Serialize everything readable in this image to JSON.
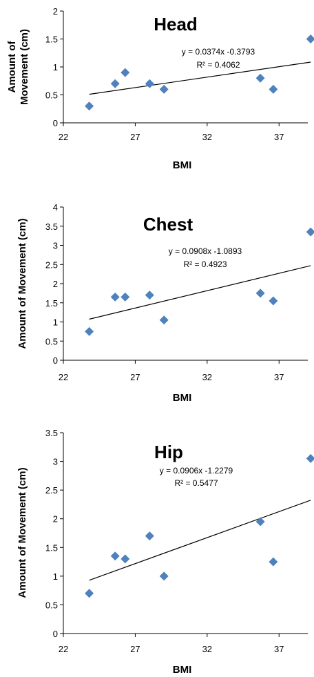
{
  "chart_data": [
    {
      "type": "scatter",
      "title": "Head",
      "xlabel": "BMI",
      "ylabel": "Amount of Movement (cm)",
      "ylabel_lines": [
        "Amount of",
        "Movement (cm)"
      ],
      "xlim": [
        22,
        39
      ],
      "ylim": [
        0,
        2
      ],
      "xticks": [
        "22",
        "27",
        "32",
        "37"
      ],
      "yticks": [
        "0",
        "0.5",
        "1",
        "1.5",
        "2"
      ],
      "points": [
        {
          "x": 23.8,
          "y": 0.3
        },
        {
          "x": 25.6,
          "y": 0.7
        },
        {
          "x": 26.3,
          "y": 0.9
        },
        {
          "x": 28.0,
          "y": 0.7
        },
        {
          "x": 29.0,
          "y": 0.6
        },
        {
          "x": 35.7,
          "y": 0.8
        },
        {
          "x": 36.6,
          "y": 0.6
        },
        {
          "x": 39.2,
          "y": 1.5
        }
      ],
      "trendline": {
        "slope": 0.0374,
        "intercept": -0.3793,
        "x_range": [
          23.8,
          39.2
        ]
      },
      "equation": "y = 0.0374x -0.3793",
      "r_squared": "R² = 0.4062",
      "marker_color": "#4f81bd",
      "grid": false,
      "legend": "none"
    },
    {
      "type": "scatter",
      "title": "Chest",
      "xlabel": "BMI",
      "ylabel": "Amount of Movement (cm)",
      "xlim": [
        22,
        39
      ],
      "ylim": [
        0,
        4
      ],
      "xticks": [
        "22",
        "27",
        "32",
        "37"
      ],
      "yticks": [
        "0",
        "0.5",
        "1",
        "1.5",
        "2",
        "2.5",
        "3",
        "3.5",
        "4"
      ],
      "points": [
        {
          "x": 23.8,
          "y": 0.75
        },
        {
          "x": 25.6,
          "y": 1.65
        },
        {
          "x": 26.3,
          "y": 1.65
        },
        {
          "x": 28.0,
          "y": 1.7
        },
        {
          "x": 29.0,
          "y": 1.05
        },
        {
          "x": 35.7,
          "y": 1.75
        },
        {
          "x": 36.6,
          "y": 1.55
        },
        {
          "x": 39.2,
          "y": 3.35
        }
      ],
      "trendline": {
        "slope": 0.0908,
        "intercept": -1.0893,
        "x_range": [
          23.8,
          39.2
        ]
      },
      "equation": "y = 0.0908x -1.0893",
      "r_squared": "R² = 0.4923",
      "marker_color": "#4f81bd",
      "grid": false,
      "legend": "none"
    },
    {
      "type": "scatter",
      "title": "Hip",
      "xlabel": "BMI",
      "ylabel": "Amount of Movement (cm)",
      "xlim": [
        22,
        39
      ],
      "ylim": [
        0,
        3.5
      ],
      "xticks": [
        "22",
        "27",
        "32",
        "37"
      ],
      "yticks": [
        "0",
        "0.5",
        "1",
        "1.5",
        "2",
        "2.5",
        "3",
        "3.5"
      ],
      "points": [
        {
          "x": 23.8,
          "y": 0.7
        },
        {
          "x": 25.6,
          "y": 1.35
        },
        {
          "x": 26.3,
          "y": 1.3
        },
        {
          "x": 28.0,
          "y": 1.7
        },
        {
          "x": 29.0,
          "y": 1.0
        },
        {
          "x": 35.7,
          "y": 1.95
        },
        {
          "x": 36.6,
          "y": 1.25
        },
        {
          "x": 39.2,
          "y": 3.05
        }
      ],
      "trendline": {
        "slope": 0.0906,
        "intercept": -1.2279,
        "x_range": [
          23.8,
          39.2
        ]
      },
      "equation": "y = 0.0906x -1.2279",
      "r_squared": "R² = 0.5477",
      "marker_color": "#4f81bd",
      "grid": false,
      "legend": "none"
    }
  ]
}
